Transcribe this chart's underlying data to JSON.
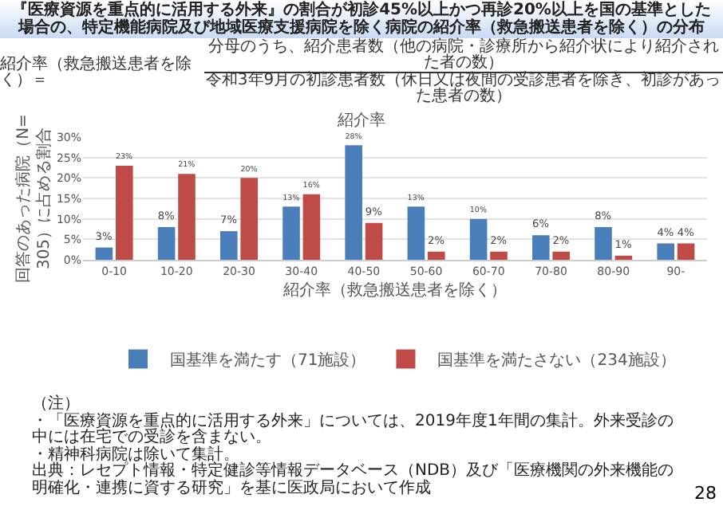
{
  "chart_data": {
    "type": "bar",
    "title": "紹介率",
    "subtitle": "『医療資源を重点的に活用する外来』の割合が初診45%以上かつ再診20%以上を国の基準とした場合の、特定機能病院及び地域医療支援病院を除く病院の紹介率（救急搬送患者を除く）の分布",
    "xlabel": "紹介率（救急搬送患者を除く）",
    "ylabel": "回答のあった病院（N=305）に占める割合",
    "categories": [
      "0-10",
      "10-20",
      "20-30",
      "30-40",
      "40-50",
      "50-60",
      "60-70",
      "70-80",
      "80-90",
      "90-"
    ],
    "series": [
      {
        "name": "国基準を満たす（71施設）",
        "color": "#4a7ebb",
        "values": [
          3,
          8,
          7,
          13,
          28,
          13,
          10,
          6,
          8,
          4
        ],
        "value_labels": [
          "3%",
          "8%",
          "7%",
          "13%",
          "28%",
          "13%",
          "10%",
          "6%",
          "8%",
          "4%"
        ]
      },
      {
        "name": "国基準を満たさない（234施設）",
        "color": "#be4b48",
        "values": [
          23,
          21,
          20,
          16,
          9,
          2,
          2,
          2,
          1,
          4
        ],
        "value_labels": [
          "23%",
          "21%",
          "20%",
          "16%",
          "9%",
          "2%",
          "2%",
          "2%",
          "1%",
          "4%"
        ]
      }
    ],
    "ylim": [
      0,
      30
    ],
    "yticks": [
      {
        "value": 0,
        "label": "0%"
      },
      {
        "value": 5,
        "label": "5%"
      },
      {
        "value": 10,
        "label": "10%"
      },
      {
        "value": 15,
        "label": "15%"
      },
      {
        "value": 20,
        "label": "20%"
      },
      {
        "value": 25,
        "label": "25%"
      },
      {
        "value": 30,
        "label": "30%"
      }
    ],
    "grid": "y",
    "legend": "bottom",
    "annotations": [
      "紹介率（救急搬送患者を除く）＝",
      "分母のうち、紹介患者数（他の病院・診療所から紹介状により紹介された者の数）",
      "令和3年9月の初診患者数（休日又は夜間の受診患者を除き、初診があった患者の数）",
      "（注）",
      "・「医療資源を重点的に活用する外来」については、2019年度1年間の集計。外来受診の中には在宅での受診を含まない。",
      "・精神科病院は除いて集計。",
      "出典：レセプト情報・特定健診等情報データベース（NDB）及び「医療機関の外来機能の明確化・連携に資する研究」を基に医政局において作成",
      "28"
    ]
  }
}
